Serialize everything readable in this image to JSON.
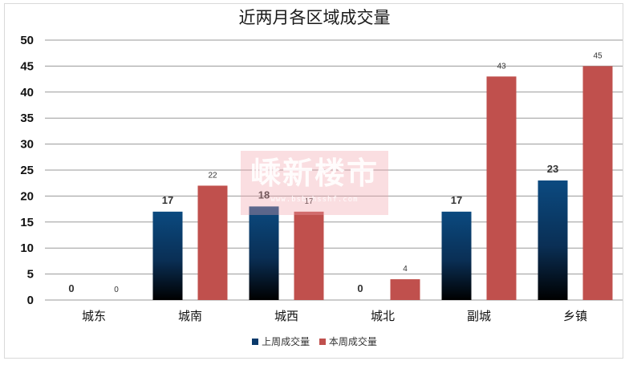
{
  "chart_data": {
    "type": "bar",
    "title": "近两月各区域成交量",
    "categories": [
      "城东",
      "城南",
      "城西",
      "城北",
      "副城",
      "乡镇"
    ],
    "series": [
      {
        "name": "上周成交量",
        "values": [
          0,
          17,
          18,
          0,
          17,
          23
        ],
        "color": "#0a3a6b"
      },
      {
        "name": "本周成交量",
        "values": [
          0,
          22,
          17,
          4,
          43,
          45
        ],
        "color": "#c0504d"
      }
    ],
    "ylim": [
      0,
      50
    ],
    "yticks": [
      0,
      5,
      10,
      15,
      20,
      25,
      30,
      35,
      40,
      45,
      50
    ],
    "grid": true,
    "legend_position": "bottom"
  },
  "watermark": {
    "text": "嵊新楼市",
    "url": "www.bsbchsshf.com"
  }
}
